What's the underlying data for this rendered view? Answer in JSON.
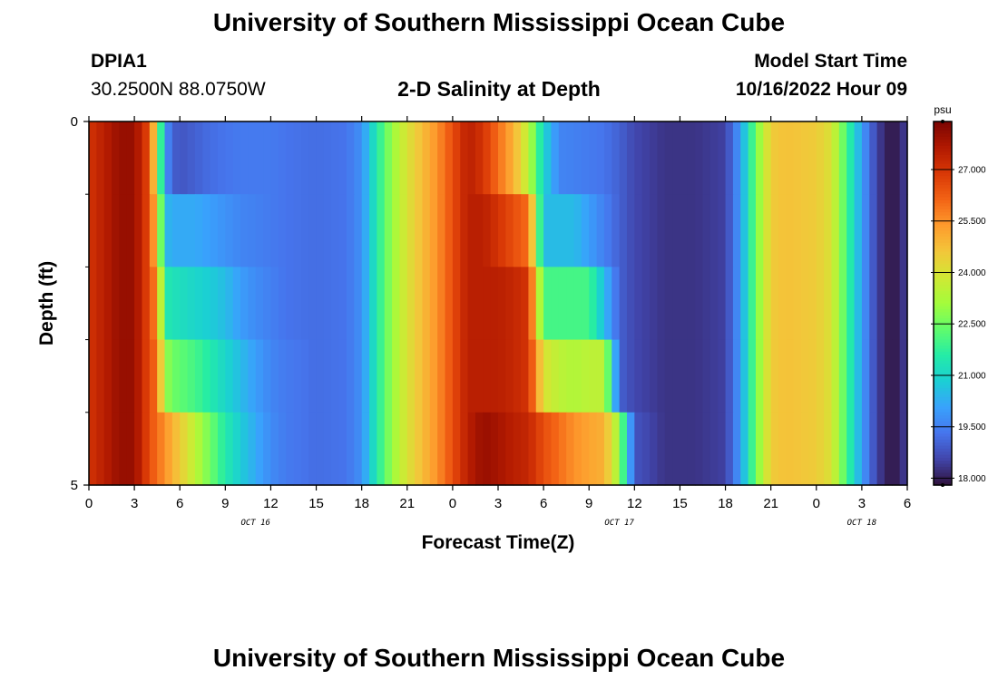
{
  "header": {
    "title_top": "University of Southern Mississippi Ocean Cube",
    "title_bottom": "University of Southern Mississippi Ocean Cube",
    "station_id": "DPIA1",
    "station_coords": "30.2500N  88.0750W",
    "plot_title": "2-D Salinity at Depth",
    "model_start_label": "Model Start Time",
    "model_start_value": "10/16/2022 Hour 09"
  },
  "chart_data": {
    "type": "heatmap",
    "title": "2-D Salinity at Depth",
    "xlabel": "Forecast Time(Z)",
    "ylabel": "Depth (ft)",
    "x_tick_labels": [
      "0",
      "3",
      "6",
      "9",
      "12",
      "15",
      "18",
      "21",
      "0",
      "3",
      "6",
      "9",
      "12",
      "15",
      "18",
      "21",
      "0",
      "3",
      "6"
    ],
    "x_hours": [
      0,
      3,
      6,
      9,
      12,
      15,
      18,
      21,
      24,
      27,
      30,
      33,
      36,
      39,
      42,
      45,
      48,
      51,
      54
    ],
    "date_labels": [
      {
        "text": "OCT 16",
        "hour": 11
      },
      {
        "text": "OCT 17",
        "hour": 35
      },
      {
        "text": "OCT 18",
        "hour": 51
      }
    ],
    "xlim": [
      0,
      54
    ],
    "ylim": [
      0,
      5
    ],
    "y_tick_labels": [
      "0",
      "5"
    ],
    "y_ticks": [
      0,
      5
    ],
    "y_minor_ticks": [
      1,
      2,
      3,
      4
    ],
    "depth_layers": [
      0,
      1,
      2,
      3,
      4
    ],
    "colorbar": {
      "units": "psu",
      "min": 17.8,
      "max": 28.4,
      "tick_values": [
        27.0,
        25.5,
        24.0,
        22.5,
        21.0,
        19.5,
        18.0
      ],
      "tick_labels": [
        "27.000",
        "25.500",
        "24.000",
        "22.500",
        "21.000",
        "19.500",
        "18.000"
      ]
    },
    "salinity_keyframes": {
      "hours": [
        0,
        1,
        2,
        3,
        4,
        4.5,
        5,
        5.5,
        6,
        7,
        8,
        9,
        10,
        11,
        12,
        13,
        15,
        17,
        18,
        19,
        20,
        21,
        22,
        23,
        24,
        25,
        26,
        27,
        28,
        29,
        30,
        31,
        32,
        33,
        34,
        35,
        36,
        38,
        40,
        42,
        43,
        44,
        45,
        46,
        47,
        48,
        49,
        50,
        51,
        52,
        53,
        54
      ],
      "layers": [
        [
          27.0,
          27.5,
          28.0,
          28.0,
          26.5,
          23.5,
          20.0,
          19.0,
          18.8,
          19.0,
          19.2,
          19.3,
          19.4,
          19.4,
          19.4,
          19.3,
          19.2,
          19.3,
          19.8,
          21.5,
          23.0,
          24.0,
          24.8,
          25.5,
          26.5,
          27.5,
          27.0,
          26.0,
          25.0,
          23.5,
          21.0,
          19.6,
          19.5,
          19.4,
          19.3,
          19.0,
          18.6,
          18.3,
          18.3,
          18.5,
          20.0,
          22.5,
          24.5,
          24.7,
          24.6,
          24.5,
          24.0,
          22.0,
          20.0,
          18.5,
          17.8,
          18.5
        ],
        [
          27.0,
          27.5,
          28.0,
          28.0,
          26.5,
          24.5,
          20.5,
          20.2,
          20.2,
          20.2,
          20.0,
          19.8,
          19.6,
          19.5,
          19.4,
          19.3,
          19.2,
          19.3,
          19.8,
          21.5,
          23.0,
          24.0,
          24.8,
          25.5,
          26.5,
          27.5,
          27.5,
          27.0,
          26.5,
          26.0,
          20.5,
          20.5,
          20.5,
          20.0,
          19.5,
          19.0,
          18.6,
          18.3,
          18.3,
          18.5,
          20.0,
          22.5,
          24.5,
          24.7,
          24.6,
          24.5,
          24.0,
          22.0,
          20.0,
          18.5,
          17.8,
          18.5
        ],
        [
          27.0,
          27.5,
          28.0,
          28.0,
          26.5,
          25.5,
          21.5,
          21.3,
          21.2,
          21.0,
          20.8,
          20.5,
          20.0,
          19.7,
          19.5,
          19.3,
          19.2,
          19.3,
          19.8,
          21.5,
          23.0,
          24.0,
          24.8,
          25.5,
          26.5,
          27.5,
          27.5,
          27.5,
          27.3,
          27.0,
          22.0,
          22.0,
          22.0,
          22.0,
          20.5,
          19.0,
          18.6,
          18.3,
          18.3,
          18.5,
          20.0,
          22.5,
          24.5,
          24.7,
          24.6,
          24.5,
          24.0,
          22.0,
          20.0,
          18.5,
          17.8,
          18.5
        ],
        [
          27.0,
          27.5,
          28.0,
          28.0,
          26.5,
          26.0,
          23.0,
          22.5,
          22.3,
          22.0,
          21.5,
          21.0,
          20.5,
          20.0,
          19.6,
          19.4,
          19.2,
          19.3,
          19.8,
          21.5,
          23.0,
          24.0,
          24.8,
          25.5,
          26.5,
          27.5,
          27.5,
          27.5,
          27.3,
          27.0,
          24.0,
          23.5,
          23.3,
          23.5,
          23.5,
          19.0,
          18.6,
          18.3,
          18.3,
          18.5,
          20.0,
          22.5,
          24.5,
          24.7,
          24.6,
          24.5,
          24.0,
          22.0,
          20.0,
          18.5,
          17.8,
          18.5
        ],
        [
          27.0,
          27.5,
          28.0,
          28.0,
          26.5,
          26.0,
          25.5,
          25.0,
          24.5,
          23.5,
          22.5,
          21.5,
          20.8,
          20.2,
          19.7,
          19.4,
          19.2,
          19.3,
          19.8,
          21.5,
          23.0,
          24.0,
          24.8,
          25.5,
          26.5,
          27.5,
          28.0,
          27.8,
          27.5,
          27.3,
          26.5,
          26.0,
          25.5,
          25.2,
          25.0,
          23.0,
          18.8,
          18.3,
          18.3,
          18.5,
          20.0,
          22.5,
          24.5,
          24.7,
          24.6,
          24.5,
          24.0,
          22.0,
          20.0,
          18.5,
          17.8,
          18.5
        ]
      ]
    }
  },
  "colors": {
    "colormap": [
      "#30123b",
      "#4145ab",
      "#4675ed",
      "#39a2fc",
      "#1bcfd4",
      "#24eca6",
      "#61fc6c",
      "#a4fc3b",
      "#d1e834",
      "#f3c63a",
      "#fe9b2d",
      "#f36315",
      "#d93806",
      "#b11901",
      "#7a0402"
    ]
  }
}
